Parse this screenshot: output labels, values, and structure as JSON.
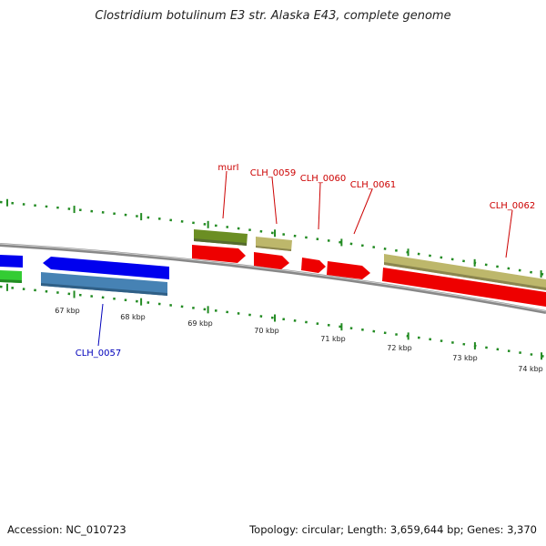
{
  "title": "Clostridium botulinum E3 str. Alaska E43, complete genome",
  "footer": {
    "accession": "Accession: NC_010723",
    "summary": "Topology: circular; Length: 3,659,644 bp; Genes: 3,370"
  },
  "axis_ticks": [
    "67 kbp",
    "68 kbp",
    "69 kbp",
    "70 kbp",
    "71 kbp",
    "72 kbp",
    "73 kbp",
    "74 kbp"
  ],
  "gene_labels": [
    {
      "id": "murI",
      "text": "murI",
      "color": "#cc0000"
    },
    {
      "id": "CLH_0059",
      "text": "CLH_0059",
      "color": "#cc0000"
    },
    {
      "id": "CLH_0060",
      "text": "CLH_0060",
      "color": "#cc0000"
    },
    {
      "id": "CLH_0061",
      "text": "CLH_0061",
      "color": "#cc0000"
    },
    {
      "id": "CLH_0062",
      "text": "CLH_0062",
      "color": "#cc0000"
    },
    {
      "id": "CLH_0057",
      "text": "CLH_0057",
      "color": "#0000bb"
    }
  ],
  "colors": {
    "cds_forward": "#ee0000",
    "cds_reverse": "#0000ee",
    "cds_green": "#33cc33",
    "feature_olive": "#6b8e23",
    "feature_khaki": "#bdb76b",
    "feature_steelblue": "#4682b4",
    "backbone": "#888888",
    "tick": "#228b22"
  }
}
